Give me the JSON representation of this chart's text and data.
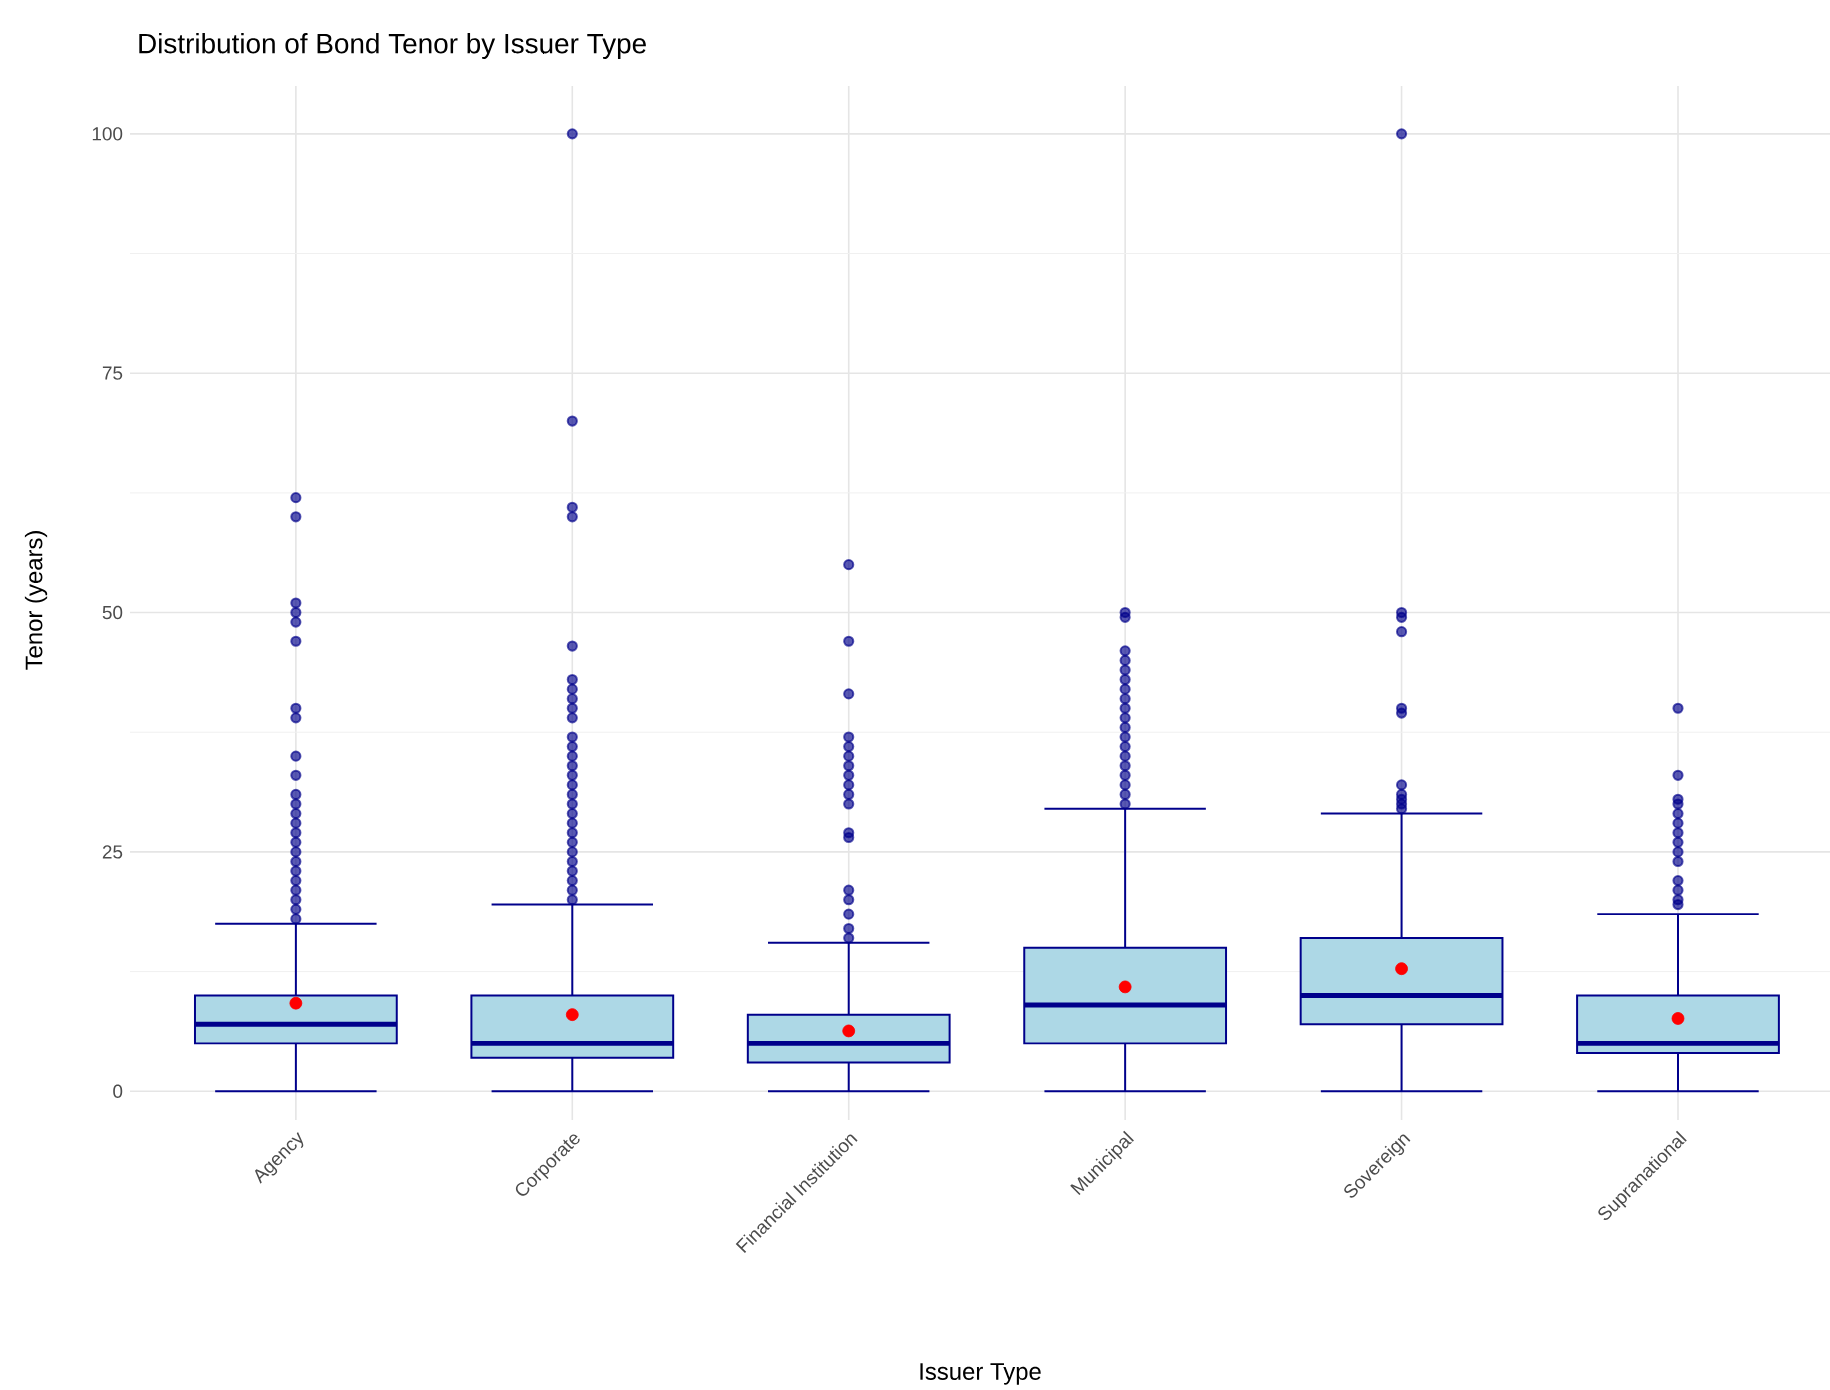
{
  "chart_data": {
    "type": "box",
    "title": "Distribution of Bond Tenor by Issuer Type",
    "xlabel": "Issuer Type",
    "ylabel": "Tenor (years)",
    "categories": [
      "Agency",
      "Corporate",
      "Financial Institution",
      "Municipal",
      "Sovereign",
      "Supranational"
    ],
    "ylim": [
      -3,
      105
    ],
    "yticks": [
      0,
      25,
      50,
      75,
      100
    ],
    "grid": true,
    "series": [
      {
        "color": "#add8e6",
        "boxes": [
          {
            "low": 0,
            "q1": 5,
            "median": 7,
            "q3": 10,
            "high": 17.5,
            "mean": 9.2,
            "outliers": [
              62,
              60,
              51,
              50,
              49,
              47,
              40,
              39,
              35,
              33,
              31,
              30,
              29,
              28,
              27,
              26,
              25,
              24,
              23,
              22,
              21,
              20,
              19,
              18
            ]
          },
          {
            "low": 0,
            "q1": 3.5,
            "median": 5,
            "q3": 10,
            "high": 19.5,
            "mean": 8,
            "outliers": [
              100,
              70,
              61,
              60,
              46.5,
              43,
              42,
              41,
              40,
              39,
              37,
              36,
              35,
              34,
              33,
              32,
              31,
              30,
              29,
              28,
              27,
              26,
              25,
              24,
              23,
              22,
              21,
              20
            ]
          },
          {
            "low": 0,
            "q1": 3,
            "median": 5,
            "q3": 8,
            "high": 15.5,
            "mean": 6.3,
            "outliers": [
              55,
              47,
              41.5,
              37,
              36,
              35,
              34,
              33,
              32,
              31,
              30,
              27,
              26.5,
              21,
              20,
              18.5,
              17,
              16
            ]
          },
          {
            "low": 0,
            "q1": 5,
            "median": 9,
            "q3": 15,
            "high": 29.5,
            "mean": 10.9,
            "outliers": [
              50,
              49.5,
              46,
              45,
              44,
              43,
              42,
              41,
              40,
              39,
              38,
              37,
              36,
              35,
              34,
              33,
              32,
              31,
              30
            ]
          },
          {
            "low": 0,
            "q1": 7,
            "median": 10,
            "q3": 16,
            "high": 29,
            "mean": 12.8,
            "outliers": [
              100,
              50,
              49.5,
              48,
              40,
              39.5,
              32,
              31,
              30.5,
              30,
              29.5
            ]
          },
          {
            "low": 0,
            "q1": 4,
            "median": 5,
            "q3": 10,
            "high": 18.5,
            "mean": 7.6,
            "outliers": [
              40,
              33,
              30.5,
              30,
              29,
              28,
              27,
              26,
              25,
              24,
              22,
              21,
              20,
              19.5
            ]
          }
        ]
      }
    ]
  }
}
